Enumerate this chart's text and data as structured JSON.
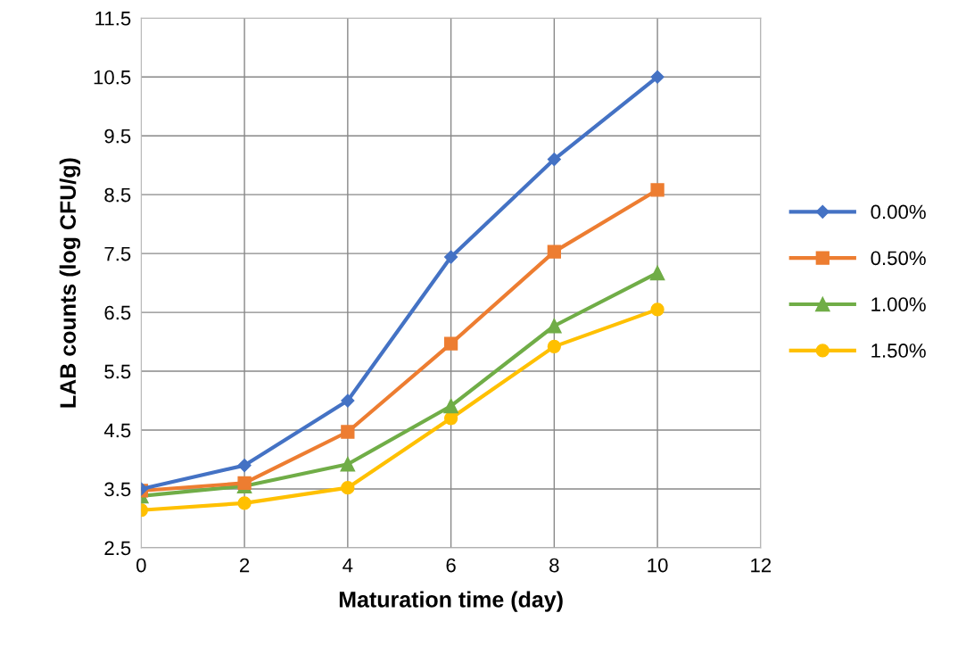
{
  "chart_data": {
    "type": "line",
    "xlabel": "Maturation time (day)",
    "ylabel": "LAB counts (log CFU/g)",
    "x": [
      0,
      2,
      4,
      6,
      8,
      10
    ],
    "series": [
      {
        "name": "0.00%",
        "color": "#4472c4",
        "marker": "diamond",
        "values": [
          3.5,
          3.9,
          5.0,
          7.44,
          9.1,
          10.5
        ]
      },
      {
        "name": "0.50%",
        "color": "#ed7d31",
        "marker": "square",
        "values": [
          3.47,
          3.6,
          4.47,
          5.97,
          7.53,
          8.58
        ]
      },
      {
        "name": "1.00%",
        "color": "#70ad47",
        "marker": "triangle",
        "values": [
          3.38,
          3.55,
          3.92,
          4.91,
          6.27,
          7.17
        ]
      },
      {
        "name": "1.50%",
        "color": "#ffc000",
        "marker": "circle",
        "values": [
          3.14,
          3.26,
          3.52,
          4.7,
          5.92,
          6.55
        ]
      }
    ],
    "xlim": [
      0,
      12
    ],
    "xticks": [
      0,
      2,
      4,
      6,
      8,
      10,
      12
    ],
    "ylim": [
      2.5,
      11.5
    ],
    "yticks": [
      2.5,
      3.5,
      4.5,
      5.5,
      6.5,
      7.5,
      8.5,
      9.5,
      10.5,
      11.5
    ],
    "grid": true,
    "legend": "right",
    "line_style": "solid"
  }
}
